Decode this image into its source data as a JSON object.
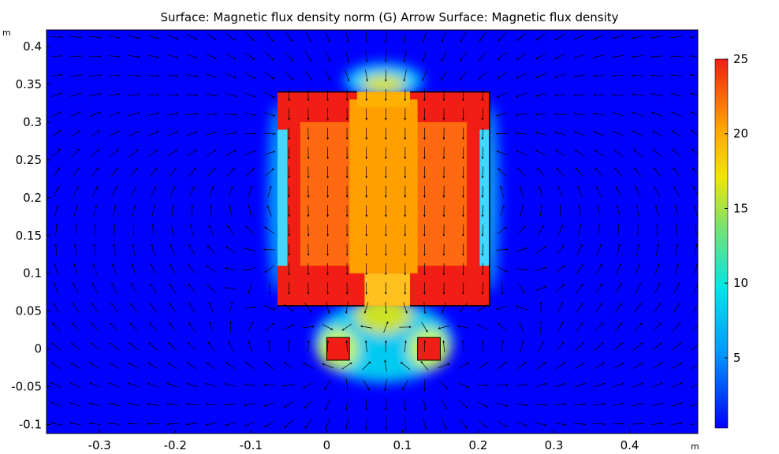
{
  "chart_data": {
    "type": "heatmap",
    "title": "Surface: Magnetic flux density norm (G)  Arrow Surface: Magnetic flux density",
    "x_unit": "m",
    "y_unit": "m",
    "xlim": [
      -0.37,
      0.49
    ],
    "ylim": [
      -0.112,
      0.422
    ],
    "x_ticks": [
      "-0.3",
      "-0.2",
      "-0.1",
      "0",
      "0.1",
      "0.2",
      "0.3",
      "0.4"
    ],
    "x_tick_values": [
      -0.3,
      -0.2,
      -0.1,
      0,
      0.1,
      0.2,
      0.3,
      0.4
    ],
    "y_ticks": [
      "0.4",
      "0.35",
      "0.3",
      "0.25",
      "0.2",
      "0.15",
      "0.1",
      "0.05",
      "0",
      "-0.05",
      "-0.1"
    ],
    "y_tick_values": [
      0.4,
      0.35,
      0.3,
      0.25,
      0.2,
      0.15,
      0.1,
      0.05,
      0,
      -0.05,
      -0.1
    ],
    "colorbar": {
      "colormap": "rainbow",
      "range": [
        0.3,
        25
      ],
      "ticks": [
        "25",
        "20",
        "15",
        "10",
        "5"
      ],
      "tick_values": [
        25,
        20,
        15,
        10,
        5
      ]
    },
    "geometry": {
      "main_box": {
        "x_range": [
          -0.065,
          0.215
        ],
        "y_range": [
          0.057,
          0.34
        ]
      },
      "top_gap": {
        "x_range": [
          0.04,
          0.11
        ]
      },
      "bottom_gap": {
        "x_range": [
          0.05,
          0.11
        ]
      },
      "left_coil": {
        "x_range": [
          0,
          0.03
        ],
        "y_range": [
          -0.015,
          0.015
        ]
      },
      "right_coil": {
        "x_range": [
          0.12,
          0.15
        ],
        "y_range": [
          -0.015,
          0.015
        ]
      }
    }
  }
}
